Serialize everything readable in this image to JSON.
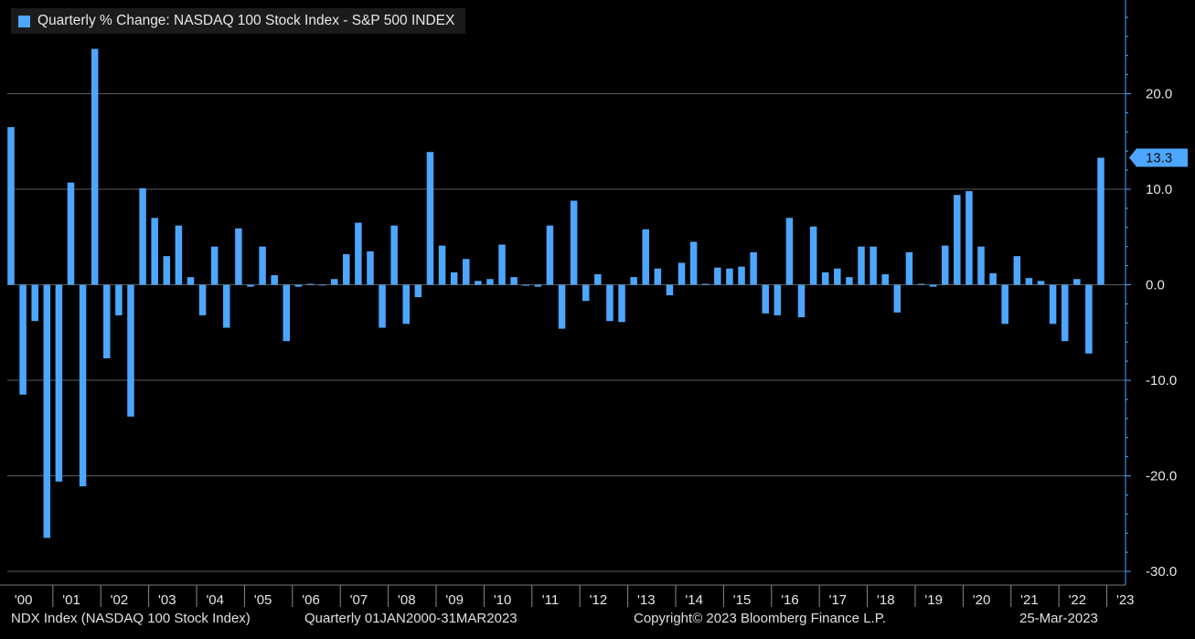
{
  "legend": {
    "label": "Quarterly % Change: NASDAQ 100 Stock Index - S&P 500 INDEX"
  },
  "footer": {
    "security": "NDX Index (NASDAQ 100 Stock Index)",
    "period": "Quarterly 01JAN2000-31MAR2023",
    "copyright": "Copyright© 2023 Bloomberg Finance L.P.",
    "date": "25-Mar-2023"
  },
  "colors": {
    "bar": "#4da6ff",
    "grid": "#5a5a5a",
    "axis": "#4da6ff",
    "background": "#000000"
  },
  "chart_data": {
    "type": "bar",
    "title": "Quarterly % Change: NASDAQ 100 Stock Index - S&P 500 INDEX",
    "xlabel": "",
    "ylabel": "",
    "ylim": [
      -30,
      30
    ],
    "yticks": [
      20,
      10,
      0,
      -10,
      -20,
      -30
    ],
    "ytick_labels": [
      "20.0",
      "10.0",
      "0.0",
      "-10.0",
      "-20.0",
      "-30.0"
    ],
    "year_labels": [
      "'00",
      "'01",
      "'02",
      "'03",
      "'04",
      "'05",
      "'06",
      "'07",
      "'08",
      "'09",
      "'10",
      "'11",
      "'12",
      "'13",
      "'14",
      "'15",
      "'16",
      "'17",
      "'18",
      "'19",
      "'20",
      "'21",
      "'22",
      "'23"
    ],
    "last_value_label": "13.3",
    "grid": true,
    "legend_position": "top-left",
    "values": [
      16.5,
      -11.5,
      -3.8,
      -26.5,
      -20.6,
      10.7,
      -21.1,
      24.7,
      -7.7,
      -3.2,
      -13.8,
      10.1,
      7.0,
      3.0,
      6.2,
      0.8,
      -3.2,
      4.0,
      -4.5,
      5.9,
      -0.2,
      4.0,
      1.0,
      -5.9,
      -0.2,
      0.1,
      0.0,
      0.6,
      3.2,
      6.5,
      3.5,
      -4.5,
      6.2,
      -4.1,
      -1.3,
      13.9,
      4.1,
      1.3,
      2.7,
      0.4,
      0.6,
      4.2,
      0.8,
      -0.1,
      -0.2,
      6.2,
      -4.6,
      8.8,
      -1.7,
      1.1,
      -3.8,
      -3.9,
      0.8,
      5.8,
      1.7,
      -1.1,
      2.3,
      4.5,
      0.1,
      1.8,
      1.7,
      1.9,
      3.4,
      -3.0,
      -3.2,
      7.0,
      -3.4,
      6.1,
      1.3,
      1.7,
      0.8,
      4.0,
      4.0,
      1.1,
      -2.9,
      3.4,
      0.1,
      -0.2,
      4.1,
      9.4,
      9.8,
      4.0,
      1.2,
      -4.1,
      3.0,
      0.7,
      0.4,
      -4.1,
      -5.9,
      0.6,
      -7.2,
      13.3
    ]
  }
}
